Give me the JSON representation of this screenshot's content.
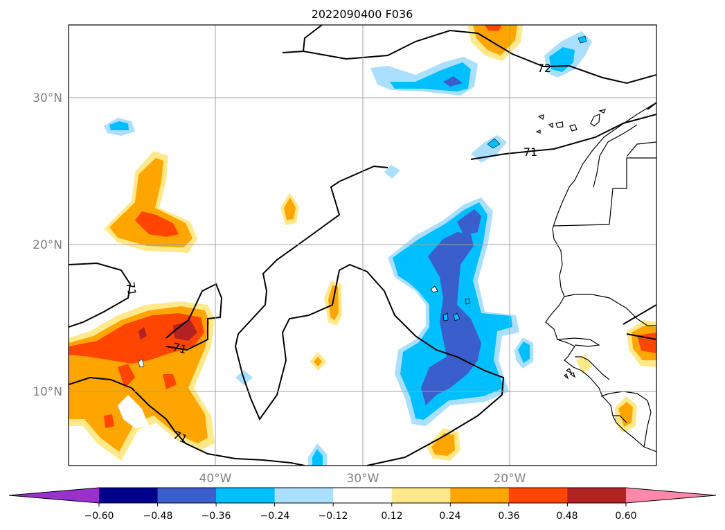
{
  "title": "2022090400 F036",
  "axes": {
    "lon_ticks": [
      "40°W",
      "30°W",
      "20°W"
    ],
    "lat_ticks": [
      "30°N",
      "20°N",
      "10°N"
    ],
    "lon_range": [
      -50,
      -10
    ],
    "lat_range": [
      5,
      35
    ],
    "grid": true
  },
  "contour_labels": [
    "71",
    "71",
    "71",
    "71",
    "72"
  ],
  "colorbar": {
    "ticks": [
      "−0.60",
      "−0.48",
      "−0.36",
      "−0.24",
      "−0.12",
      "0.12",
      "0.24",
      "0.36",
      "0.48",
      "0.60"
    ],
    "colors": [
      "#9932cc",
      "#00008b",
      "#3a5fcd",
      "#00bfff",
      "#aadfff",
      "#ffffff",
      "#ffe98a",
      "#ffa500",
      "#ff4500",
      "#b22222",
      "#ff88aa"
    ],
    "extend": "both"
  }
}
